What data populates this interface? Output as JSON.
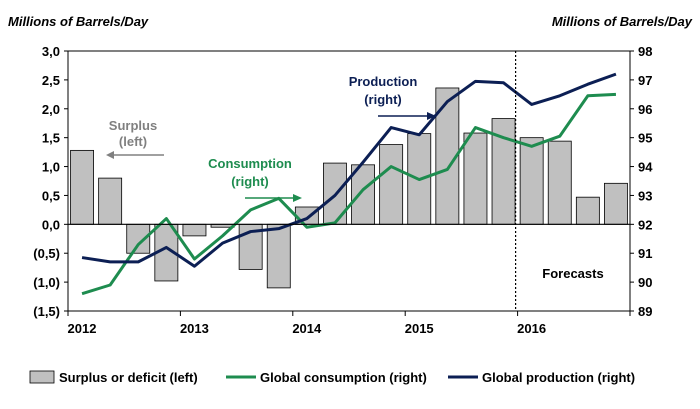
{
  "chart_data": {
    "type": "bar+line",
    "title": "",
    "y_left_label": "Millions of Barrels/Day",
    "y_right_label": "Millions of Barrels/Day",
    "y_left_range": [
      -1.5,
      3.0
    ],
    "y_left_ticks": [
      "(1,5)",
      "(1,0)",
      "(0,5)",
      "0,0",
      "0,5",
      "1,0",
      "1,5",
      "2,0",
      "2,5",
      "3,0"
    ],
    "y_right_range": [
      89,
      98
    ],
    "y_right_ticks": [
      "89",
      "90",
      "91",
      "92",
      "93",
      "94",
      "95",
      "96",
      "97",
      "98"
    ],
    "year_labels": [
      "2012",
      "2013",
      "2014",
      "2015",
      "2016"
    ],
    "quarters": [
      "2012Q1",
      "2012Q2",
      "2012Q3",
      "2012Q4",
      "2013Q1",
      "2013Q2",
      "2013Q3",
      "2013Q4",
      "2014Q1",
      "2014Q2",
      "2014Q3",
      "2014Q4",
      "2015Q1",
      "2015Q2",
      "2015Q3",
      "2015Q4",
      "2016Q1",
      "2016Q2",
      "2016Q3",
      "2016Q4"
    ],
    "series": [
      {
        "name": "Surplus or deficit (left)",
        "type": "bar",
        "axis": "left",
        "color": "#c0c0c0",
        "values": [
          1.28,
          0.8,
          -0.5,
          -0.98,
          -0.2,
          -0.05,
          -0.78,
          -1.1,
          0.3,
          1.06,
          1.03,
          1.38,
          1.57,
          2.36,
          1.58,
          1.83,
          1.5,
          1.44,
          0.47,
          0.71
        ]
      },
      {
        "name": "Global consumption (right)",
        "type": "line",
        "axis": "right",
        "color": "#1e8c4f",
        "values": [
          89.6,
          89.9,
          91.3,
          92.2,
          90.8,
          91.6,
          92.5,
          92.9,
          91.9,
          92.05,
          93.2,
          94.0,
          93.55,
          93.9,
          95.35,
          95.0,
          94.7,
          95.05,
          96.45,
          96.5
        ]
      },
      {
        "name": "Global production (right)",
        "type": "line",
        "axis": "right",
        "color": "#0c1f54",
        "values": [
          90.85,
          90.7,
          90.7,
          91.2,
          90.55,
          91.35,
          91.75,
          91.85,
          92.2,
          93.0,
          94.15,
          95.35,
          95.1,
          96.25,
          96.95,
          96.9,
          96.15,
          96.45,
          96.85,
          97.2
        ]
      }
    ],
    "annotations": [
      {
        "text_lines": [
          "Surplus",
          "(left)"
        ],
        "color": "#808080"
      },
      {
        "text_lines": [
          "Consumption",
          "(right)"
        ],
        "color": "#1e8c4f"
      },
      {
        "text_lines": [
          "Production",
          "(right)"
        ],
        "color": "#0c1f54"
      },
      {
        "text_lines": [
          "Forecasts"
        ],
        "color": "#000000"
      }
    ],
    "forecast_start_after": "2015Q4",
    "legend_position": "bottom"
  }
}
